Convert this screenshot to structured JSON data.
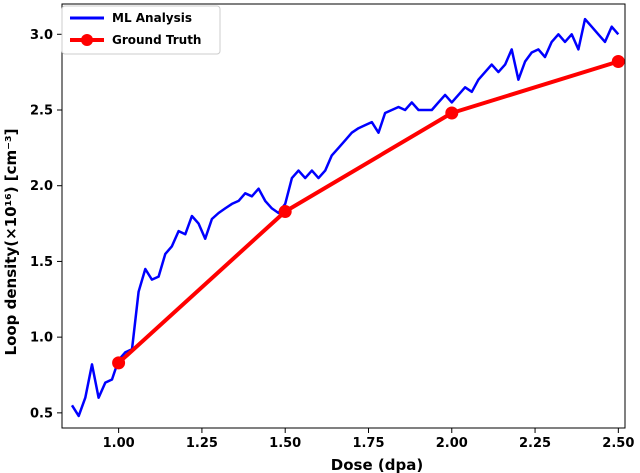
{
  "chart_data": {
    "type": "line",
    "xlabel": "Dose (dpa)",
    "ylabel": "Loop density(×10¹⁶) [cm⁻³]",
    "xlim": [
      0.83,
      2.52
    ],
    "ylim": [
      0.4,
      3.2
    ],
    "x_ticks": [
      "1.00",
      "1.25",
      "1.50",
      "1.75",
      "2.00",
      "2.25",
      "2.50"
    ],
    "y_ticks": [
      "0.5",
      "1.0",
      "1.5",
      "2.0",
      "2.5",
      "3.0"
    ],
    "legend_position": "top-left",
    "series": [
      {
        "name": "ML Analysis",
        "color": "#0000ff",
        "x": [
          0.86,
          0.88,
          0.9,
          0.92,
          0.94,
          0.96,
          0.98,
          1.0,
          1.02,
          1.04,
          1.06,
          1.08,
          1.1,
          1.12,
          1.14,
          1.16,
          1.18,
          1.2,
          1.22,
          1.24,
          1.26,
          1.28,
          1.3,
          1.32,
          1.34,
          1.36,
          1.38,
          1.4,
          1.42,
          1.44,
          1.46,
          1.48,
          1.5,
          1.52,
          1.54,
          1.56,
          1.58,
          1.6,
          1.62,
          1.64,
          1.66,
          1.68,
          1.7,
          1.72,
          1.74,
          1.76,
          1.78,
          1.8,
          1.82,
          1.84,
          1.86,
          1.88,
          1.9,
          1.92,
          1.94,
          1.96,
          1.98,
          2.0,
          2.02,
          2.04,
          2.06,
          2.08,
          2.1,
          2.12,
          2.14,
          2.16,
          2.18,
          2.2,
          2.22,
          2.24,
          2.26,
          2.28,
          2.3,
          2.32,
          2.34,
          2.36,
          2.38,
          2.4,
          2.42,
          2.44,
          2.46,
          2.48,
          2.5
        ],
        "y": [
          0.55,
          0.48,
          0.6,
          0.82,
          0.6,
          0.7,
          0.72,
          0.85,
          0.9,
          0.92,
          1.3,
          1.45,
          1.38,
          1.4,
          1.55,
          1.6,
          1.7,
          1.68,
          1.8,
          1.75,
          1.65,
          1.78,
          1.82,
          1.85,
          1.88,
          1.9,
          1.95,
          1.93,
          1.98,
          1.9,
          1.85,
          1.82,
          1.88,
          2.05,
          2.1,
          2.05,
          2.1,
          2.05,
          2.1,
          2.2,
          2.25,
          2.3,
          2.35,
          2.38,
          2.4,
          2.42,
          2.35,
          2.48,
          2.5,
          2.52,
          2.5,
          2.55,
          2.5,
          2.5,
          2.5,
          2.55,
          2.6,
          2.55,
          2.6,
          2.65,
          2.62,
          2.7,
          2.75,
          2.8,
          2.75,
          2.8,
          2.9,
          2.7,
          2.82,
          2.88,
          2.9,
          2.85,
          2.95,
          3.0,
          2.95,
          3.0,
          2.9,
          3.1,
          3.05,
          3.0,
          2.95,
          3.05,
          3.0
        ]
      },
      {
        "name": "Ground Truth",
        "color": "#ff0000",
        "x": [
          1.0,
          1.5,
          2.0,
          2.5
        ],
        "y": [
          0.83,
          1.83,
          2.48,
          2.82
        ]
      }
    ]
  }
}
